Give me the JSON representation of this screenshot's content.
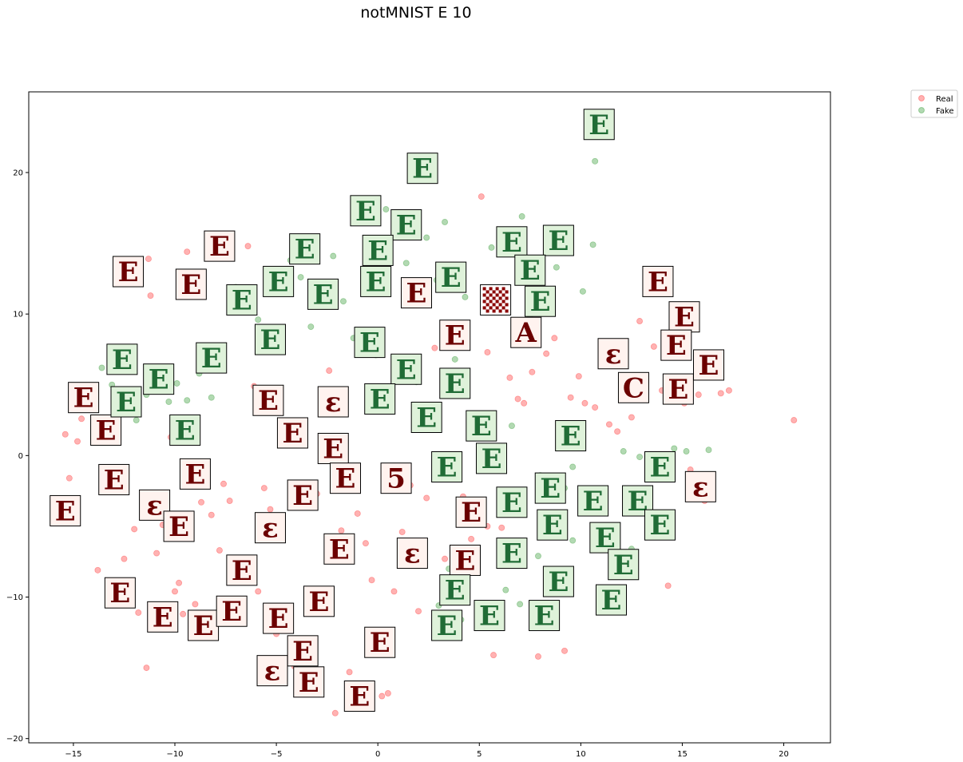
{
  "chart_data": {
    "type": "scatter",
    "title": "notMNIST E 10",
    "xlabel": "",
    "ylabel": "",
    "xlim": [
      -17.2,
      22.3
    ],
    "ylim": [
      -20.3,
      25.7
    ],
    "x_ticks": [
      -15,
      -10,
      -5,
      0,
      5,
      10,
      15,
      20
    ],
    "y_ticks": [
      -20,
      -10,
      0,
      10,
      20
    ],
    "grid": false,
    "legend_position": "outside-top-right",
    "series": [
      {
        "name": "Real",
        "color": "#ff0000",
        "alpha": 0.3,
        "points": [
          [
            -15.2,
            -1.6
          ],
          [
            -15.4,
            1.5
          ],
          [
            -14.8,
            1.0
          ],
          [
            -14.6,
            2.6
          ],
          [
            -13.8,
            -8.1
          ],
          [
            -13.3,
            -1.5
          ],
          [
            -12.9,
            -10.4
          ],
          [
            -12.5,
            -7.3
          ],
          [
            -12.2,
            13.0
          ],
          [
            -11.9,
            12.8
          ],
          [
            -11.8,
            -11.1
          ],
          [
            -11.4,
            -15.0
          ],
          [
            -11.3,
            13.9
          ],
          [
            -11.2,
            11.3
          ],
          [
            -10.9,
            -6.9
          ],
          [
            -10.6,
            -4.9
          ],
          [
            -10.4,
            -5.2
          ],
          [
            -10.2,
            1.3
          ],
          [
            -10.0,
            -9.6
          ],
          [
            -9.6,
            -11.2
          ],
          [
            -9.4,
            14.4
          ],
          [
            -9.2,
            12.9
          ],
          [
            -9.0,
            -10.5
          ],
          [
            -8.7,
            -3.3
          ],
          [
            -8.5,
            -12.6
          ],
          [
            -8.2,
            -4.2
          ],
          [
            -8.0,
            14.7
          ],
          [
            -7.8,
            -6.7
          ],
          [
            -7.6,
            -2.0
          ],
          [
            -7.3,
            -3.2
          ],
          [
            -7.0,
            -11.7
          ],
          [
            -6.7,
            -10.5
          ],
          [
            -6.4,
            14.8
          ],
          [
            -6.1,
            4.9
          ],
          [
            -5.9,
            -9.6
          ],
          [
            -5.6,
            -2.3
          ],
          [
            -5.3,
            -3.8
          ],
          [
            -5.0,
            -12.6
          ],
          [
            -4.8,
            2.4
          ],
          [
            -4.4,
            -11.3
          ],
          [
            -4.1,
            -14.9
          ],
          [
            -3.9,
            -3.5
          ],
          [
            -3.6,
            1.3
          ],
          [
            -3.3,
            -16.4
          ],
          [
            -3.0,
            -2.7
          ],
          [
            -2.7,
            -10.4
          ],
          [
            -2.4,
            6.0
          ],
          [
            -2.1,
            -18.2
          ],
          [
            -1.8,
            -5.3
          ],
          [
            -1.4,
            -15.3
          ],
          [
            -1.0,
            -4.1
          ],
          [
            -0.6,
            -6.2
          ],
          [
            -0.3,
            -8.8
          ],
          [
            0.2,
            -17.0
          ],
          [
            0.5,
            -16.8
          ],
          [
            0.8,
            -9.6
          ],
          [
            1.2,
            -5.4
          ],
          [
            1.6,
            -2.1
          ],
          [
            2.0,
            -11.0
          ],
          [
            2.4,
            -3.0
          ],
          [
            2.8,
            7.6
          ],
          [
            3.3,
            -7.3
          ],
          [
            3.7,
            -12.3
          ],
          [
            4.2,
            -2.9
          ],
          [
            4.6,
            -5.9
          ],
          [
            5.1,
            18.3
          ],
          [
            5.4,
            7.3
          ],
          [
            5.7,
            -14.1
          ],
          [
            6.1,
            -5.1
          ],
          [
            6.5,
            5.5
          ],
          [
            6.9,
            4.0
          ],
          [
            7.2,
            3.7
          ],
          [
            7.6,
            5.9
          ],
          [
            7.9,
            -14.2
          ],
          [
            8.3,
            7.2
          ],
          [
            8.7,
            8.3
          ],
          [
            9.2,
            -13.8
          ],
          [
            9.5,
            4.1
          ],
          [
            9.9,
            5.6
          ],
          [
            10.2,
            3.7
          ],
          [
            10.7,
            3.4
          ],
          [
            11.1,
            6.4
          ],
          [
            11.4,
            2.2
          ],
          [
            11.8,
            1.7
          ],
          [
            12.2,
            7.2
          ],
          [
            12.5,
            2.7
          ],
          [
            12.9,
            9.5
          ],
          [
            13.2,
            5.6
          ],
          [
            13.6,
            7.7
          ],
          [
            14.0,
            4.6
          ],
          [
            14.3,
            -9.2
          ],
          [
            14.7,
            8.7
          ],
          [
            15.1,
            3.7
          ],
          [
            15.4,
            -1.0
          ],
          [
            15.8,
            4.3
          ],
          [
            16.1,
            -3.2
          ],
          [
            16.5,
            6.1
          ],
          [
            16.9,
            4.4
          ],
          [
            17.3,
            4.6
          ],
          [
            20.5,
            2.5
          ],
          [
            5.4,
            -5.0
          ],
          [
            -9.8,
            -9.0
          ],
          [
            -12.0,
            -5.2
          ]
        ]
      },
      {
        "name": "Fake",
        "color": "#008000",
        "alpha": 0.3,
        "points": [
          [
            -13.6,
            6.2
          ],
          [
            -13.1,
            5.0
          ],
          [
            -12.6,
            6.8
          ],
          [
            -11.9,
            2.5
          ],
          [
            -11.4,
            4.3
          ],
          [
            -10.8,
            5.6
          ],
          [
            -10.3,
            3.8
          ],
          [
            -9.9,
            5.1
          ],
          [
            -9.4,
            3.9
          ],
          [
            -8.8,
            5.8
          ],
          [
            -8.2,
            4.1
          ],
          [
            -7.6,
            6.6
          ],
          [
            -7.0,
            11.9
          ],
          [
            -6.5,
            10.4
          ],
          [
            -5.9,
            9.6
          ],
          [
            -5.3,
            11.6
          ],
          [
            -4.8,
            8.4
          ],
          [
            -4.3,
            13.8
          ],
          [
            -3.8,
            12.6
          ],
          [
            -3.3,
            9.1
          ],
          [
            -2.8,
            11.9
          ],
          [
            -2.2,
            14.1
          ],
          [
            -1.7,
            10.9
          ],
          [
            -1.2,
            8.3
          ],
          [
            -0.6,
            15.2
          ],
          [
            -0.1,
            7.1
          ],
          [
            0.4,
            17.4
          ],
          [
            0.9,
            16.1
          ],
          [
            1.4,
            13.6
          ],
          [
            1.9,
            5.2
          ],
          [
            2.4,
            15.4
          ],
          [
            2.9,
            12.4
          ],
          [
            3.3,
            16.5
          ],
          [
            3.8,
            6.8
          ],
          [
            4.3,
            11.2
          ],
          [
            4.8,
            2.4
          ],
          [
            5.2,
            -11.4
          ],
          [
            5.6,
            14.7
          ],
          [
            6.1,
            11.2
          ],
          [
            6.6,
            2.1
          ],
          [
            7.1,
            16.9
          ],
          [
            7.5,
            9.7
          ],
          [
            7.9,
            -7.1
          ],
          [
            8.3,
            15.2
          ],
          [
            8.8,
            13.3
          ],
          [
            9.2,
            -2.3
          ],
          [
            9.6,
            -0.8
          ],
          [
            10.1,
            11.6
          ],
          [
            10.6,
            14.9
          ],
          [
            10.7,
            20.8
          ],
          [
            11.1,
            -4.0
          ],
          [
            11.6,
            -10.7
          ],
          [
            12.1,
            0.3
          ],
          [
            12.5,
            -6.6
          ],
          [
            12.9,
            -0.1
          ],
          [
            13.3,
            -3.3
          ],
          [
            13.8,
            -4.6
          ],
          [
            14.1,
            -1.0
          ],
          [
            14.6,
            0.5
          ],
          [
            15.2,
            0.3
          ],
          [
            16.3,
            0.4
          ],
          [
            3.0,
            -10.6
          ],
          [
            3.5,
            -8.0
          ],
          [
            4.1,
            -11.6
          ],
          [
            6.3,
            -9.5
          ],
          [
            7.0,
            -10.5
          ],
          [
            8.0,
            -1.4
          ],
          [
            9.6,
            -6.0
          ]
        ]
      }
    ]
  },
  "legend": {
    "real_label": "Real",
    "fake_label": "Fake"
  },
  "thumbnails": [
    {
      "x": -12.3,
      "y": 13.0,
      "letter": "E",
      "kind": "real"
    },
    {
      "x": -7.8,
      "y": 14.8,
      "letter": "E",
      "kind": "real"
    },
    {
      "x": -9.2,
      "y": 12.1,
      "letter": "E",
      "kind": "real"
    },
    {
      "x": -14.5,
      "y": 4.1,
      "letter": "E",
      "kind": "real"
    },
    {
      "x": -13.4,
      "y": 1.8,
      "letter": "E",
      "kind": "real"
    },
    {
      "x": -15.4,
      "y": -3.9,
      "letter": "E",
      "kind": "real"
    },
    {
      "x": -13.0,
      "y": -1.7,
      "letter": "E",
      "kind": "real"
    },
    {
      "x": -11.0,
      "y": -3.5,
      "letter": "ε",
      "kind": "real"
    },
    {
      "x": -9.8,
      "y": -5.0,
      "letter": "E",
      "kind": "real"
    },
    {
      "x": -9.0,
      "y": -1.3,
      "letter": "E",
      "kind": "real"
    },
    {
      "x": -5.4,
      "y": 3.9,
      "letter": "E",
      "kind": "real"
    },
    {
      "x": -4.2,
      "y": 1.6,
      "letter": "E",
      "kind": "real"
    },
    {
      "x": -2.2,
      "y": 3.8,
      "letter": "ε",
      "kind": "real"
    },
    {
      "x": -2.2,
      "y": 0.5,
      "letter": "E",
      "kind": "real"
    },
    {
      "x": -1.6,
      "y": -1.6,
      "letter": "E",
      "kind": "real"
    },
    {
      "x": -3.7,
      "y": -2.8,
      "letter": "E",
      "kind": "real"
    },
    {
      "x": -5.3,
      "y": -5.1,
      "letter": "ε",
      "kind": "real"
    },
    {
      "x": -1.9,
      "y": -6.6,
      "letter": "E",
      "kind": "real"
    },
    {
      "x": 0.9,
      "y": -1.6,
      "letter": "5",
      "kind": "real"
    },
    {
      "x": -6.7,
      "y": -8.1,
      "letter": "E",
      "kind": "real"
    },
    {
      "x": -12.7,
      "y": -9.7,
      "letter": "E",
      "kind": "real"
    },
    {
      "x": -10.6,
      "y": -11.4,
      "letter": "E",
      "kind": "real"
    },
    {
      "x": -8.6,
      "y": -12.0,
      "letter": "E",
      "kind": "real"
    },
    {
      "x": -7.2,
      "y": -11.0,
      "letter": "E",
      "kind": "real"
    },
    {
      "x": -4.9,
      "y": -11.5,
      "letter": "E",
      "kind": "real"
    },
    {
      "x": -2.9,
      "y": -10.3,
      "letter": "E",
      "kind": "real"
    },
    {
      "x": -3.7,
      "y": -13.8,
      "letter": "E",
      "kind": "real"
    },
    {
      "x": -5.2,
      "y": -15.2,
      "letter": "ε",
      "kind": "real"
    },
    {
      "x": -3.4,
      "y": -16.0,
      "letter": "E",
      "kind": "real"
    },
    {
      "x": 0.1,
      "y": -13.2,
      "letter": "E",
      "kind": "real"
    },
    {
      "x": -0.9,
      "y": -17.0,
      "letter": "E",
      "kind": "real"
    },
    {
      "x": 1.7,
      "y": -6.9,
      "letter": "ε",
      "kind": "real"
    },
    {
      "x": 4.6,
      "y": -4.0,
      "letter": "E",
      "kind": "real"
    },
    {
      "x": 4.3,
      "y": -7.4,
      "letter": "E",
      "kind": "real"
    },
    {
      "x": 1.9,
      "y": 11.5,
      "letter": "E",
      "kind": "real"
    },
    {
      "x": 3.8,
      "y": 8.5,
      "letter": "E",
      "kind": "real"
    },
    {
      "x": 5.8,
      "y": 11.0,
      "letter": "",
      "kind": "checker"
    },
    {
      "x": 7.3,
      "y": 8.7,
      "letter": "A",
      "kind": "real"
    },
    {
      "x": 11.6,
      "y": 7.2,
      "letter": "ε",
      "kind": "real"
    },
    {
      "x": 12.6,
      "y": 4.8,
      "letter": "C",
      "kind": "real"
    },
    {
      "x": 13.8,
      "y": 12.3,
      "letter": "E",
      "kind": "real"
    },
    {
      "x": 15.1,
      "y": 9.8,
      "letter": "E",
      "kind": "real"
    },
    {
      "x": 14.7,
      "y": 7.8,
      "letter": "E",
      "kind": "real"
    },
    {
      "x": 16.3,
      "y": 6.4,
      "letter": "E",
      "kind": "real"
    },
    {
      "x": 14.8,
      "y": 4.7,
      "letter": "E",
      "kind": "real"
    },
    {
      "x": 15.9,
      "y": -2.2,
      "letter": "ε",
      "kind": "real"
    },
    {
      "x": 2.2,
      "y": 20.3,
      "letter": "E",
      "kind": "fake"
    },
    {
      "x": 10.9,
      "y": 23.4,
      "letter": "E",
      "kind": "fake"
    },
    {
      "x": -0.6,
      "y": 17.3,
      "letter": "E",
      "kind": "fake"
    },
    {
      "x": 1.4,
      "y": 16.3,
      "letter": "E",
      "kind": "fake"
    },
    {
      "x": -3.6,
      "y": 14.6,
      "letter": "E",
      "kind": "fake"
    },
    {
      "x": 0.0,
      "y": 14.5,
      "letter": "E",
      "kind": "fake"
    },
    {
      "x": -0.1,
      "y": 12.3,
      "letter": "E",
      "kind": "fake"
    },
    {
      "x": -4.9,
      "y": 12.3,
      "letter": "E",
      "kind": "fake"
    },
    {
      "x": -6.7,
      "y": 11.0,
      "letter": "E",
      "kind": "fake"
    },
    {
      "x": -2.7,
      "y": 11.4,
      "letter": "E",
      "kind": "fake"
    },
    {
      "x": 3.6,
      "y": 12.6,
      "letter": "E",
      "kind": "fake"
    },
    {
      "x": 6.6,
      "y": 15.1,
      "letter": "E",
      "kind": "fake"
    },
    {
      "x": 8.9,
      "y": 15.2,
      "letter": "E",
      "kind": "fake"
    },
    {
      "x": 7.5,
      "y": 13.1,
      "letter": "E",
      "kind": "fake"
    },
    {
      "x": 8.0,
      "y": 10.9,
      "letter": "E",
      "kind": "fake"
    },
    {
      "x": -5.3,
      "y": 8.2,
      "letter": "E",
      "kind": "fake"
    },
    {
      "x": -0.4,
      "y": 8.0,
      "letter": "E",
      "kind": "fake"
    },
    {
      "x": 1.4,
      "y": 6.1,
      "letter": "E",
      "kind": "fake"
    },
    {
      "x": 0.1,
      "y": 4.0,
      "letter": "E",
      "kind": "fake"
    },
    {
      "x": 3.8,
      "y": 5.1,
      "letter": "E",
      "kind": "fake"
    },
    {
      "x": -12.6,
      "y": 6.8,
      "letter": "E",
      "kind": "fake"
    },
    {
      "x": -8.2,
      "y": 6.9,
      "letter": "E",
      "kind": "fake"
    },
    {
      "x": -10.8,
      "y": 5.4,
      "letter": "E",
      "kind": "fake"
    },
    {
      "x": -12.4,
      "y": 3.8,
      "letter": "E",
      "kind": "fake"
    },
    {
      "x": -9.5,
      "y": 1.8,
      "letter": "E",
      "kind": "fake"
    },
    {
      "x": 2.4,
      "y": 2.7,
      "letter": "E",
      "kind": "fake"
    },
    {
      "x": 5.1,
      "y": 2.1,
      "letter": "E",
      "kind": "fake"
    },
    {
      "x": 5.6,
      "y": -0.2,
      "letter": "E",
      "kind": "fake"
    },
    {
      "x": 3.4,
      "y": -0.8,
      "letter": "E",
      "kind": "fake"
    },
    {
      "x": 9.5,
      "y": 1.4,
      "letter": "E",
      "kind": "fake"
    },
    {
      "x": 13.9,
      "y": -0.8,
      "letter": "E",
      "kind": "fake"
    },
    {
      "x": 8.5,
      "y": -2.3,
      "letter": "E",
      "kind": "fake"
    },
    {
      "x": 6.6,
      "y": -3.3,
      "letter": "E",
      "kind": "fake"
    },
    {
      "x": 10.6,
      "y": -3.2,
      "letter": "E",
      "kind": "fake"
    },
    {
      "x": 12.8,
      "y": -3.2,
      "letter": "E",
      "kind": "fake"
    },
    {
      "x": 8.6,
      "y": -4.9,
      "letter": "E",
      "kind": "fake"
    },
    {
      "x": 13.9,
      "y": -4.9,
      "letter": "E",
      "kind": "fake"
    },
    {
      "x": 11.2,
      "y": -5.8,
      "letter": "E",
      "kind": "fake"
    },
    {
      "x": 6.6,
      "y": -6.9,
      "letter": "E",
      "kind": "fake"
    },
    {
      "x": 12.1,
      "y": -7.7,
      "letter": "E",
      "kind": "fake"
    },
    {
      "x": 8.9,
      "y": -8.9,
      "letter": "E",
      "kind": "fake"
    },
    {
      "x": 3.8,
      "y": -9.5,
      "letter": "E",
      "kind": "fake"
    },
    {
      "x": 11.5,
      "y": -10.2,
      "letter": "E",
      "kind": "fake"
    },
    {
      "x": 5.5,
      "y": -11.3,
      "letter": "E",
      "kind": "fake"
    },
    {
      "x": 8.2,
      "y": -11.3,
      "letter": "E",
      "kind": "fake"
    },
    {
      "x": 3.4,
      "y": -12.0,
      "letter": "E",
      "kind": "fake"
    }
  ]
}
